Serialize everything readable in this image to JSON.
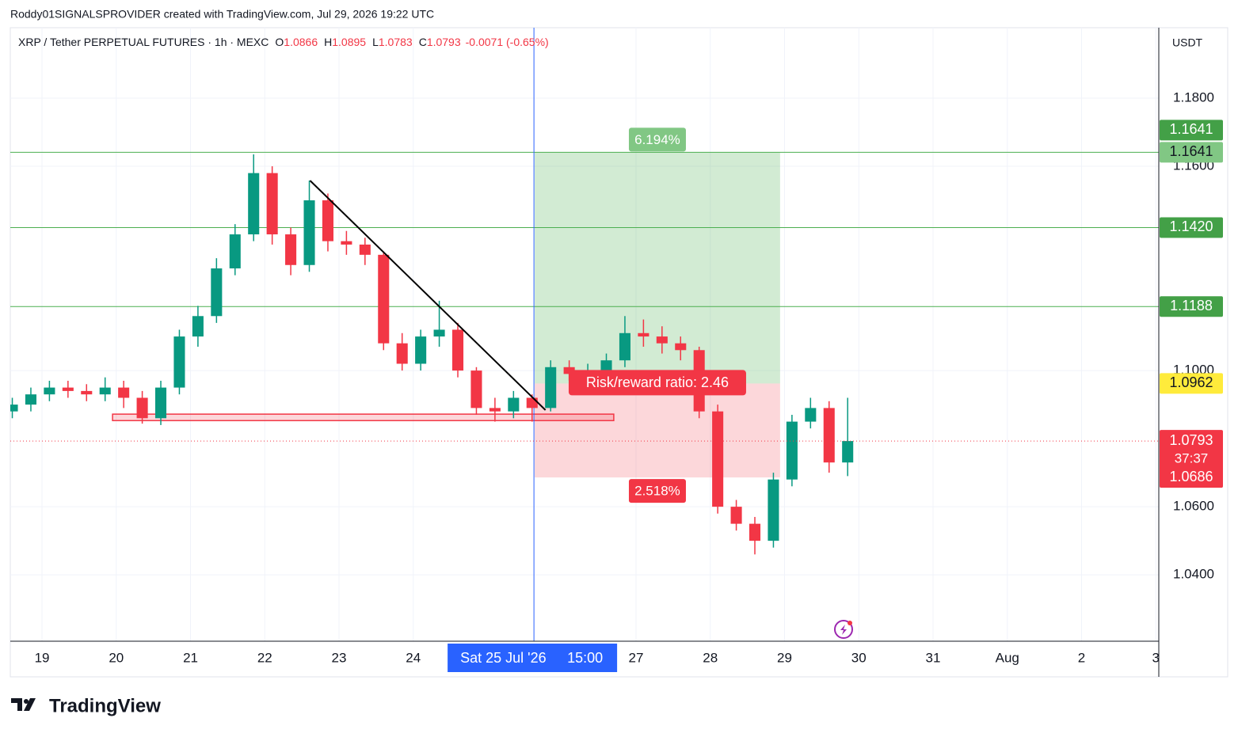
{
  "header": {
    "attribution": "Roddy01SIGNALSPROVIDER created with TradingView.com, Jul 29, 2026 19:22 UTC"
  },
  "chart_data": {
    "type": "candlestick",
    "title": "XRP / Tether PERPETUAL FUTURES · 1h · MEXC",
    "ohlc_legend": [
      {
        "key": "O",
        "value": "1.0866"
      },
      {
        "key": "H",
        "value": "1.0895"
      },
      {
        "key": "L",
        "value": "1.0783"
      },
      {
        "key": "C",
        "value": "1.0793"
      }
    ],
    "change": "-0.0071 (-0.65%)",
    "currency": "USDT",
    "x": [
      18.6,
      18.85,
      19.1,
      19.35,
      19.6,
      19.85,
      20.1,
      20.35,
      20.6,
      20.85,
      21.1,
      21.35,
      21.6,
      21.85,
      22.1,
      22.35,
      22.6,
      22.85,
      23.1,
      23.35,
      23.6,
      23.85,
      24.1,
      24.35,
      24.6,
      24.85,
      25.1,
      25.35,
      25.6,
      25.85,
      26.1,
      26.35,
      26.6,
      26.85,
      27.1,
      27.35,
      27.6,
      27.85,
      28.1,
      28.35,
      28.6,
      28.85,
      29.1,
      29.35,
      29.6,
      29.85
    ],
    "open": [
      1.088,
      1.09,
      1.093,
      1.095,
      1.094,
      1.093,
      1.095,
      1.092,
      1.086,
      1.095,
      1.11,
      1.116,
      1.13,
      1.14,
      1.158,
      1.14,
      1.131,
      1.15,
      1.138,
      1.137,
      1.134,
      1.108,
      1.102,
      1.11,
      1.112,
      1.1,
      1.089,
      1.088,
      1.092,
      1.089,
      1.101,
      1.099,
      1.1,
      1.103,
      1.111,
      1.11,
      1.108,
      1.106,
      1.088,
      1.06,
      1.055,
      1.05,
      1.068,
      1.085,
      1.089,
      1.073
    ],
    "high": [
      1.092,
      1.095,
      1.097,
      1.097,
      1.096,
      1.098,
      1.097,
      1.094,
      1.097,
      1.112,
      1.119,
      1.133,
      1.143,
      1.1635,
      1.16,
      1.142,
      1.1558,
      1.152,
      1.141,
      1.139,
      1.135,
      1.111,
      1.112,
      1.1205,
      1.114,
      1.101,
      1.092,
      1.094,
      1.093,
      1.103,
      1.103,
      1.102,
      1.105,
      1.116,
      1.115,
      1.113,
      1.11,
      1.107,
      1.09,
      1.062,
      1.057,
      1.07,
      1.087,
      1.092,
      1.091,
      1.092
    ],
    "low": [
      1.086,
      1.088,
      1.091,
      1.092,
      1.091,
      1.091,
      1.089,
      1.0844,
      1.084,
      1.093,
      1.107,
      1.114,
      1.128,
      1.138,
      1.137,
      1.128,
      1.129,
      1.135,
      1.134,
      1.131,
      1.106,
      1.1,
      1.1,
      1.107,
      1.098,
      1.087,
      1.085,
      1.086,
      1.085,
      1.088,
      1.097,
      1.097,
      1.098,
      1.101,
      1.107,
      1.105,
      1.103,
      1.086,
      1.058,
      1.053,
      1.046,
      1.048,
      1.066,
      1.083,
      1.07,
      1.069
    ],
    "close": [
      1.09,
      1.093,
      1.095,
      1.094,
      1.093,
      1.095,
      1.092,
      1.086,
      1.095,
      1.11,
      1.116,
      1.13,
      1.14,
      1.158,
      1.14,
      1.131,
      1.15,
      1.138,
      1.137,
      1.134,
      1.108,
      1.102,
      1.11,
      1.112,
      1.1,
      1.089,
      1.088,
      1.092,
      1.089,
      1.101,
      1.099,
      1.1,
      1.103,
      1.111,
      1.11,
      1.108,
      1.106,
      1.088,
      1.06,
      1.055,
      1.05,
      1.068,
      1.085,
      1.089,
      1.073,
      1.0793
    ],
    "colors": {
      "up": "#089981",
      "down": "#f23645"
    },
    "xlim": [
      18.573,
      34.04
    ],
    "xticks": [
      19,
      20,
      21,
      22,
      23,
      24,
      27,
      28,
      29,
      30,
      31,
      {
        "value": 32,
        "label": "Aug"
      },
      {
        "value": 33,
        "label": "2"
      },
      {
        "value": 34,
        "label": "3"
      }
    ],
    "ylim": [
      1.0205,
      1.2007
    ],
    "yticks": [
      {
        "value": 1.18,
        "label": "1.1800"
      },
      {
        "value": 1.16,
        "label": "1.1600"
      },
      {
        "value": 1.1,
        "label": "1.1000"
      },
      {
        "value": 1.06,
        "label": "1.0600"
      },
      {
        "value": 1.04,
        "label": "1.0400"
      }
    ],
    "grid": true,
    "last_price": {
      "label": "1.0793",
      "countdown": "37:37"
    },
    "levels": [
      {
        "value": 1.1641,
        "label": "1.1641"
      },
      {
        "value": 1.142,
        "label": "1.1420"
      },
      {
        "value": 1.1188,
        "label": "1.1188"
      }
    ],
    "position": {
      "x": [
        25.635,
        28.94
      ],
      "entry": {
        "value": 1.0962,
        "label": "1.0962"
      },
      "target": {
        "value": 1.1641,
        "label": "1.1641"
      },
      "stop": {
        "value": 1.0686,
        "label": "1.0686"
      },
      "target_pct": "6.194%",
      "stop_pct": "2.518%",
      "ratio_label": "Risk/reward ratio: 2.46"
    },
    "trendline": {
      "x": [
        22.61,
        25.78
      ],
      "y": [
        1.1558,
        1.0884
      ]
    },
    "zone": {
      "x": [
        19.95,
        26.7
      ],
      "y": [
        1.0853,
        1.0872
      ]
    },
    "crosshair": {
      "x": 25.625,
      "date_label": "Sat 25 Jul '26",
      "time_label": "15:00"
    }
  },
  "footer": {
    "logo": "TradingView"
  }
}
